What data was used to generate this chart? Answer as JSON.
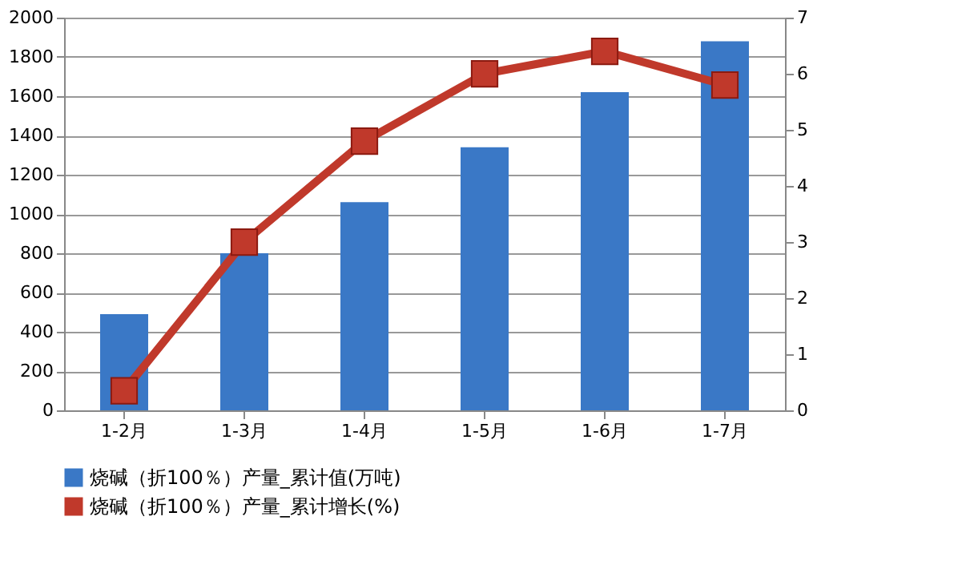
{
  "chart_data": {
    "type": "bar",
    "categories": [
      "1-2月",
      "1-3月",
      "1-4月",
      "1-5月",
      "1-6月",
      "1-7月"
    ],
    "series": [
      {
        "name": "烧碱（折100％）产量_累计值(万吨)",
        "color": "#3a78c6",
        "values": [
          490,
          800,
          1060,
          1340,
          1620,
          1880
        ]
      },
      {
        "name": "烧碱（折100％）产量_累计增长(%)",
        "type": "line",
        "axis": "y2",
        "color": "#c0392b",
        "values": [
          0.35,
          3.0,
          4.8,
          6.0,
          6.4,
          5.8
        ]
      }
    ],
    "ylim": [
      0,
      2000
    ],
    "yticks": [
      0,
      200,
      400,
      600,
      800,
      1000,
      1200,
      1400,
      1600,
      1800,
      2000
    ],
    "y2lim": [
      0,
      7
    ],
    "y2ticks": [
      0,
      1,
      2,
      3,
      4,
      5,
      6,
      7
    ],
    "grid": "y",
    "legend": "bottom",
    "marker": "square",
    "line_style": "solid"
  }
}
